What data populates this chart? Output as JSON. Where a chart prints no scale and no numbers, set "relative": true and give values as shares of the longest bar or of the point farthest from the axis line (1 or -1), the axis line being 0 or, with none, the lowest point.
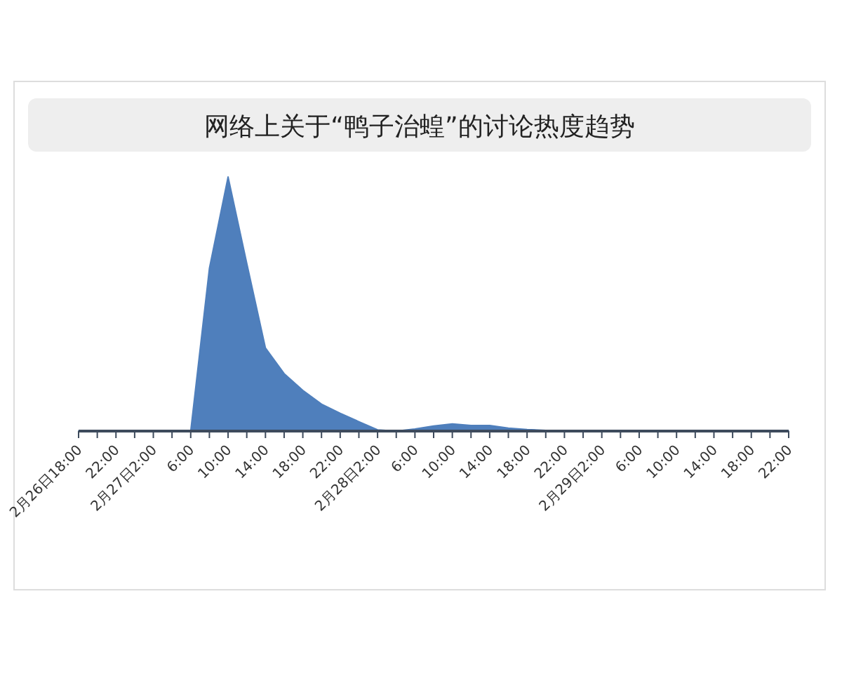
{
  "chart_data": {
    "type": "area",
    "title": "网络上关于“鸭子治蝗”的讨论热度趋势",
    "relative": true,
    "categories": [
      "2月26日18:00",
      null,
      "22:00",
      null,
      "2月27日2:00",
      null,
      "6:00",
      null,
      "10:00",
      null,
      "14:00",
      null,
      "18:00",
      null,
      "22:00",
      null,
      "2月28日2:00",
      null,
      "6:00",
      null,
      "10:00",
      null,
      "14:00",
      null,
      "18:00",
      null,
      "22:00",
      null,
      "2月29日2:00",
      null,
      "6:00",
      null,
      "10:00",
      null,
      "14:00",
      null,
      "18:00",
      null,
      "22:00"
    ],
    "series": [
      {
        "color": "#4f7fbc",
        "values": [
          0,
          0,
          0,
          0,
          0,
          0,
          0,
          0.64,
          1,
          0.66,
          0.327,
          0.226,
          0.16,
          0.106,
          0.07,
          0.037,
          0.005,
          0,
          0.008,
          0.02,
          0.028,
          0.022,
          0.022,
          0.012,
          0.006,
          0.003,
          0.003,
          0.002,
          0.002,
          0,
          0,
          0,
          0,
          0,
          0,
          0,
          0,
          0,
          0
        ]
      }
    ]
  }
}
